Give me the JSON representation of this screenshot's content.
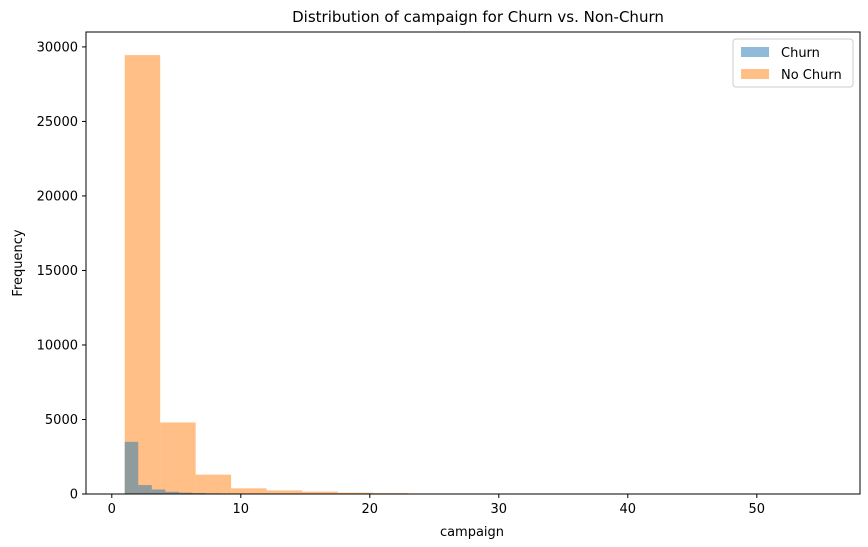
{
  "chart_data": {
    "type": "histogram",
    "title": "Distribution of campaign for Churn vs. Non-Churn",
    "xlabel": "campaign",
    "ylabel": "Frequency",
    "xlim": [
      -2,
      58
    ],
    "ylim": [
      0,
      31000
    ],
    "xticks": [
      0,
      10,
      20,
      30,
      40,
      50
    ],
    "yticks": [
      0,
      5000,
      10000,
      15000,
      20000,
      25000,
      30000
    ],
    "grid": false,
    "legend_position": "top-right",
    "series": [
      {
        "name": "Churn",
        "color": "#1f77b4",
        "opacity": 0.5,
        "bin_edges": [
          1.0,
          2.05,
          3.1,
          4.15,
          5.2,
          6.25,
          7.3,
          8.35,
          9.4,
          10.45,
          11.5,
          12.55,
          13.6,
          14.65,
          15.7,
          16.75,
          17.8,
          18.85,
          19.9,
          20.95,
          22.0,
          23.05,
          24.1,
          25.15,
          26.2,
          27.25,
          28.3,
          29.35,
          30.4,
          31.45,
          32.5,
          33.55,
          34.6,
          35.65,
          36.7,
          37.75,
          38.8,
          39.85,
          40.9,
          41.95,
          43.0
        ],
        "values": [
          3500,
          600,
          300,
          150,
          90,
          60,
          40,
          30,
          20,
          15,
          12,
          10,
          8,
          6,
          5,
          4,
          3,
          3,
          2,
          2,
          2,
          1,
          1,
          1,
          1,
          1,
          1,
          0,
          0,
          0,
          0,
          0,
          0,
          0,
          0,
          0,
          0,
          0,
          0,
          0
        ]
      },
      {
        "name": "No Churn",
        "color": "#ff7f0e",
        "opacity": 0.5,
        "bin_edges": [
          1.0,
          3.75,
          6.5,
          9.25,
          12.0,
          14.75,
          17.5,
          20.25,
          23.0,
          25.75,
          28.5,
          31.25,
          34.0,
          36.75,
          39.5,
          42.25,
          45.0,
          47.75,
          50.5,
          53.25,
          56.0
        ],
        "values": [
          29450,
          4800,
          1300,
          380,
          240,
          160,
          90,
          60,
          35,
          25,
          15,
          8,
          5,
          3,
          2,
          2,
          1,
          1,
          1,
          1
        ]
      }
    ]
  }
}
